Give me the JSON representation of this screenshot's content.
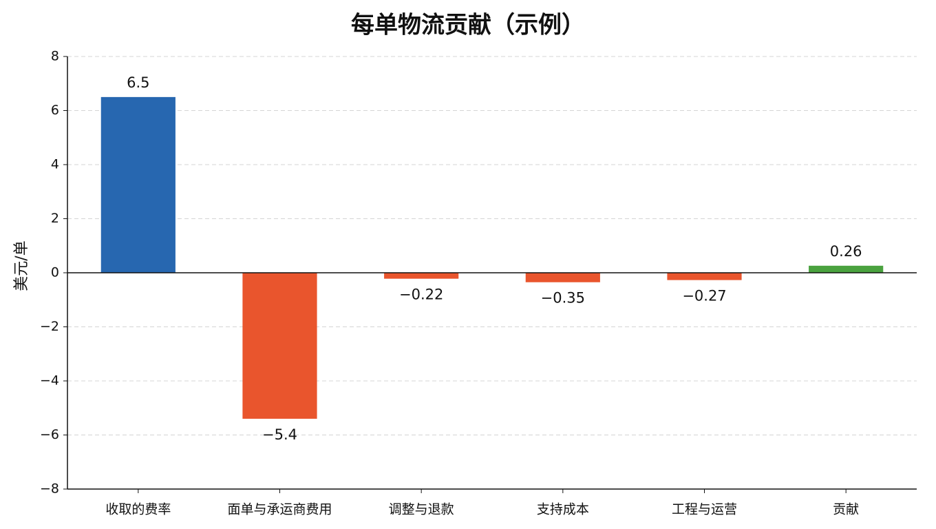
{
  "chart_data": {
    "type": "bar",
    "title": "每单物流贡献（示例）",
    "y_label": "美元/单",
    "categories": [
      "收取的费率",
      "面单与承运商费用",
      "调整与退款",
      "支持成本",
      "工程与运营",
      "贡献"
    ],
    "values": [
      6.5,
      -5.4,
      -0.22,
      -0.35,
      -0.27,
      0.26
    ],
    "value_labels": [
      "6.5",
      "−5.4",
      "−0.22",
      "−0.35",
      "−0.27",
      "0.26"
    ],
    "colors": [
      "#2767b0",
      "#e9552d",
      "#e9552d",
      "#e9552d",
      "#e9552d",
      "#4aa23f"
    ],
    "ylim": [
      -8,
      8
    ],
    "yticks": [
      {
        "value": -8,
        "label": "−8"
      },
      {
        "value": -6,
        "label": "−6"
      },
      {
        "value": -4,
        "label": "−4"
      },
      {
        "value": -2,
        "label": "−2"
      },
      0,
      2,
      4,
      6,
      8
    ],
    "grid": true
  }
}
